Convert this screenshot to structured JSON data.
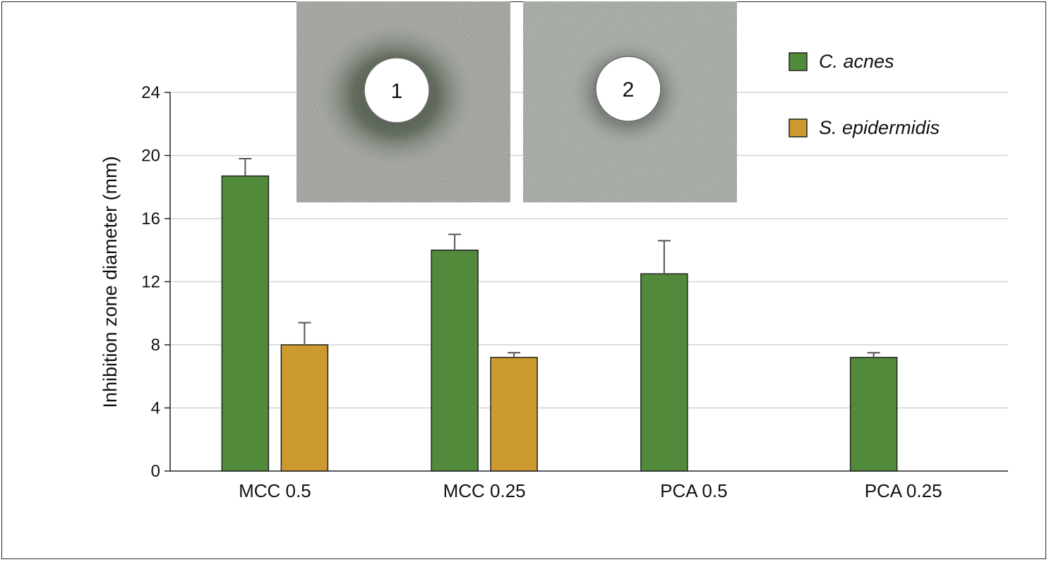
{
  "chart_data": {
    "type": "bar",
    "ylabel": "Inhibition zone diameter (mm)",
    "xlabel": "",
    "ylim": [
      0,
      24
    ],
    "yticks": [
      0,
      4,
      8,
      12,
      16,
      20,
      24
    ],
    "grid": true,
    "legend_position": "top-right",
    "categories": [
      "MCC 0.5",
      "MCC 0.25",
      "PCA 0.5",
      "PCA 0.25"
    ],
    "series": [
      {
        "name": "C. acnes",
        "color": "#528a3c",
        "values": [
          18.7,
          14.0,
          12.5,
          7.2
        ],
        "errors": [
          1.1,
          1.0,
          2.1,
          0.3
        ]
      },
      {
        "name": "S. epidermidis",
        "color": "#cc9a2f",
        "values": [
          8.0,
          7.2,
          null,
          null
        ],
        "errors": [
          1.4,
          0.3,
          null,
          null
        ]
      }
    ]
  },
  "inset_images": [
    {
      "label": "1",
      "description_icon": "agar-plate-photo"
    },
    {
      "label": "2",
      "description_icon": "agar-plate-photo"
    }
  ]
}
